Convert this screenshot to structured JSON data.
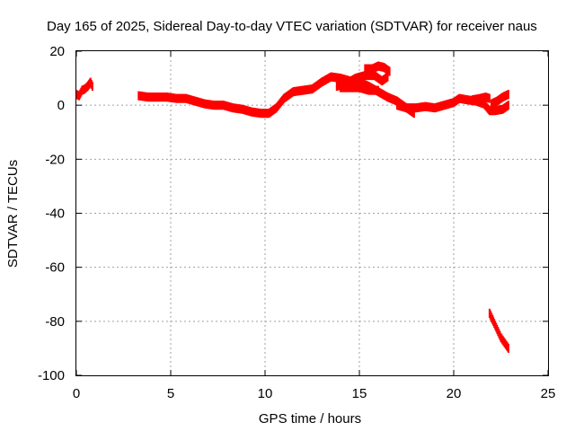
{
  "chart_data": {
    "type": "scatter",
    "title": "Day 165 of 2025, Sidereal Day-to-day VTEC variation (SDTVAR) for receiver naus",
    "xlabel": "GPS time / hours",
    "ylabel": "SDTVAR / TECUs",
    "xlim": [
      0,
      25
    ],
    "ylim": [
      -100,
      20
    ],
    "xticks": [
      0,
      5,
      10,
      15,
      20,
      25
    ],
    "yticks": [
      -100,
      -80,
      -60,
      -40,
      -20,
      0,
      20
    ],
    "grid": true,
    "legend": "none",
    "series_color": "#ff0000",
    "series": [
      {
        "name": "segment-1",
        "points": [
          [
            0.0,
            4
          ],
          [
            0.15,
            3.5
          ],
          [
            0.3,
            5.5
          ],
          [
            0.45,
            6
          ],
          [
            0.6,
            7
          ],
          [
            0.75,
            8.5
          ],
          [
            0.85,
            7
          ]
        ]
      },
      {
        "name": "segment-2",
        "points": [
          [
            3.3,
            3.5
          ],
          [
            3.8,
            3
          ],
          [
            4.3,
            3
          ],
          [
            4.8,
            3
          ],
          [
            5.3,
            2.5
          ],
          [
            5.8,
            2.5
          ],
          [
            6.3,
            1.5
          ],
          [
            6.8,
            0.5
          ],
          [
            7.3,
            0
          ],
          [
            7.8,
            0
          ],
          [
            8.3,
            -1
          ],
          [
            8.8,
            -1.5
          ],
          [
            9.3,
            -2.5
          ],
          [
            9.8,
            -3
          ],
          [
            10.2,
            -3
          ],
          [
            10.6,
            -1
          ],
          [
            11.0,
            2.5
          ],
          [
            11.5,
            5
          ],
          [
            12.0,
            5.5
          ],
          [
            12.5,
            6
          ],
          [
            13.0,
            8.5
          ],
          [
            13.5,
            10.5
          ],
          [
            14.0,
            10
          ],
          [
            14.5,
            9
          ],
          [
            15.0,
            8.5
          ],
          [
            15.5,
            7
          ],
          [
            16.0,
            5
          ],
          [
            16.5,
            3
          ],
          [
            17.0,
            1.5
          ],
          [
            17.5,
            -1
          ],
          [
            17.9,
            -3
          ]
        ]
      },
      {
        "name": "segment-3",
        "points": [
          [
            13.8,
            7
          ],
          [
            14.3,
            8
          ],
          [
            14.8,
            10
          ],
          [
            15.3,
            11
          ],
          [
            15.8,
            11
          ],
          [
            16.2,
            9
          ],
          [
            16.5,
            10.5
          ]
        ]
      },
      {
        "name": "segment-4",
        "points": [
          [
            14.0,
            6.5
          ],
          [
            14.5,
            6.5
          ],
          [
            15.0,
            6.5
          ],
          [
            15.5,
            5.5
          ],
          [
            16.0,
            5.5
          ]
        ]
      },
      {
        "name": "segment-5",
        "points": [
          [
            15.3,
            13.5
          ],
          [
            15.7,
            13.5
          ],
          [
            16.0,
            14.5
          ],
          [
            16.3,
            14
          ],
          [
            16.6,
            12.5
          ]
        ]
      },
      {
        "name": "segment-6",
        "points": [
          [
            17.0,
            0
          ],
          [
            17.5,
            -1
          ],
          [
            18.0,
            -1
          ],
          [
            18.5,
            -0.5
          ],
          [
            19.0,
            -1
          ],
          [
            19.5,
            0
          ],
          [
            20.0,
            1
          ],
          [
            20.3,
            2.5
          ],
          [
            20.7,
            2
          ],
          [
            21.2,
            1.5
          ],
          [
            21.6,
            0.5
          ],
          [
            21.9,
            -2
          ],
          [
            22.2,
            -2
          ],
          [
            22.6,
            -1.5
          ],
          [
            22.9,
            0
          ]
        ]
      },
      {
        "name": "segment-7",
        "points": [
          [
            21.0,
            2
          ],
          [
            21.4,
            2.5
          ],
          [
            21.7,
            3
          ],
          [
            21.9,
            2.5
          ]
        ]
      },
      {
        "name": "segment-8",
        "points": [
          [
            22.0,
            0.5
          ],
          [
            22.3,
            1.5
          ],
          [
            22.6,
            3
          ],
          [
            22.9,
            4
          ]
        ]
      },
      {
        "name": "segment-9",
        "points": [
          [
            21.9,
            -77
          ],
          [
            22.1,
            -80
          ],
          [
            22.3,
            -83
          ],
          [
            22.5,
            -86
          ],
          [
            22.7,
            -88
          ],
          [
            22.9,
            -90
          ]
        ]
      }
    ]
  }
}
